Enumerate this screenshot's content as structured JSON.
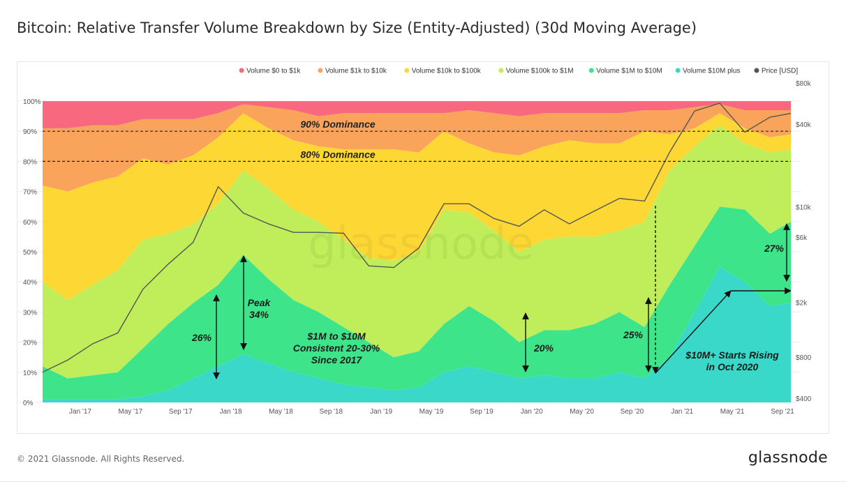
{
  "title": "Bitcoin: Relative Transfer Volume Breakdown by Size (Entity-Adjusted) (30d Moving Average)",
  "footer": {
    "copyright": "© 2021 Glassnode. All Rights Reserved.",
    "brand": "glassnode"
  },
  "watermark": "glassnode",
  "colors": {
    "v0_1k": "#f8697f",
    "v1k_10k": "#f9a35b",
    "v10k_100k": "#fdd835",
    "v100k_1m": "#bfee5a",
    "v1m_10m": "#3ee48a",
    "v10m_plus": "#3ad8c8",
    "price": "#555555"
  },
  "chart_data": {
    "type": "area",
    "stacked": true,
    "title": "Bitcoin: Relative Transfer Volume Breakdown by Size (Entity-Adjusted) (30d Moving Average)",
    "x_ticks": [
      "Jan '17",
      "May '17",
      "Sep '17",
      "Jan '18",
      "May '18",
      "Sep '18",
      "Jan '19",
      "May '19",
      "Sep '19",
      "Jan '20",
      "May '20",
      "Sep '20",
      "Jan '21",
      "May '21",
      "Sep '21"
    ],
    "y_left": {
      "ticks": [
        "0%",
        "10%",
        "20%",
        "30%",
        "40%",
        "50%",
        "60%",
        "70%",
        "80%",
        "90%",
        "100%"
      ],
      "range": [
        0,
        100
      ]
    },
    "y_right": {
      "label": "Price [USD]",
      "scale": "log",
      "ticks": [
        "$400",
        "$800",
        "$2k",
        "$6k",
        "$10k",
        "$40k",
        "$80k"
      ],
      "tick_values": [
        400,
        800,
        2000,
        6000,
        10000,
        40000,
        80000
      ]
    },
    "x": [
      "2016-10",
      "2016-12",
      "2017-02",
      "2017-04",
      "2017-06",
      "2017-08",
      "2017-10",
      "2017-12",
      "2018-02",
      "2018-04",
      "2018-06",
      "2018-08",
      "2018-10",
      "2018-12",
      "2019-02",
      "2019-04",
      "2019-06",
      "2019-08",
      "2019-10",
      "2019-12",
      "2020-02",
      "2020-04",
      "2020-06",
      "2020-08",
      "2020-10",
      "2020-12",
      "2021-02",
      "2021-04",
      "2021-06",
      "2021-08",
      "2021-09"
    ],
    "series": [
      {
        "name": "Volume $10M plus",
        "values": [
          1,
          1,
          1,
          1,
          2,
          4,
          8,
          12,
          16,
          13,
          10,
          8,
          6,
          5,
          4,
          5,
          10,
          12,
          10,
          8,
          9,
          8,
          8,
          10,
          8,
          15,
          30,
          45,
          40,
          32,
          33
        ]
      },
      {
        "name": "Volume $1M to $10M",
        "values": [
          11,
          7,
          8,
          9,
          16,
          22,
          25,
          27,
          33,
          28,
          24,
          22,
          19,
          15,
          11,
          12,
          16,
          20,
          17,
          12,
          15,
          16,
          18,
          20,
          17,
          24,
          22,
          20,
          24,
          24,
          27
        ]
      },
      {
        "name": "Volume $100k to $1M",
        "values": [
          28,
          26,
          30,
          34,
          36,
          30,
          26,
          27,
          28,
          30,
          30,
          30,
          29,
          28,
          32,
          33,
          38,
          31,
          30,
          30,
          30,
          31,
          29,
          27,
          35,
          38,
          33,
          27,
          22,
          27,
          24
        ]
      },
      {
        "name": "Volume $10k to $100k",
        "values": [
          32,
          36,
          34,
          31,
          27,
          23,
          23,
          22,
          19,
          20,
          23,
          25,
          30,
          36,
          37,
          33,
          26,
          23,
          26,
          32,
          31,
          32,
          31,
          29,
          30,
          12,
          6,
          4,
          5,
          5,
          5
        ]
      },
      {
        "name": "Volume $1k to $10k",
        "values": [
          19,
          21,
          19,
          17,
          13,
          15,
          12,
          8,
          3,
          7,
          10,
          10,
          12,
          12,
          12,
          13,
          6,
          11,
          13,
          13,
          11,
          9,
          10,
          10,
          7,
          8,
          7,
          3,
          6,
          9,
          8
        ]
      },
      {
        "name": "Volume $0 to $1k",
        "values": [
          9,
          9,
          8,
          8,
          6,
          6,
          6,
          4,
          1,
          2,
          3,
          5,
          4,
          4,
          4,
          4,
          4,
          3,
          4,
          5,
          4,
          4,
          4,
          4,
          3,
          3,
          2,
          1,
          3,
          3,
          3
        ]
      }
    ],
    "price": {
      "name": "Price [USD]",
      "values": [
        620,
        760,
        1000,
        1200,
        2500,
        3800,
        5500,
        14000,
        9000,
        7500,
        6500,
        6500,
        6400,
        3700,
        3600,
        5000,
        10500,
        10500,
        8200,
        7200,
        9500,
        7500,
        9300,
        11500,
        11000,
        25000,
        50000,
        57000,
        35000,
        45000,
        48000
      ]
    },
    "legend": {
      "placement": "top-right",
      "items": [
        "Volume $0 to $1k",
        "Volume $1k to $10k",
        "Volume $10k to $100k",
        "Volume $100k to $1M",
        "Volume $1M to $10M",
        "Volume $10M plus",
        "Price [USD]"
      ]
    },
    "reference_lines": [
      {
        "label": "90% Dominance",
        "value": 90
      },
      {
        "label": "80% Dominance",
        "value": 80
      }
    ],
    "annotations": [
      {
        "text": "26%"
      },
      {
        "text": "Peak 34%"
      },
      {
        "text": "$1M to $10M Consistent 20-30% Since 2017"
      },
      {
        "text": "20%"
      },
      {
        "text": "25%"
      },
      {
        "text": "$10M+ Starts Rising in Oct 2020"
      },
      {
        "text": "27%"
      }
    ]
  }
}
